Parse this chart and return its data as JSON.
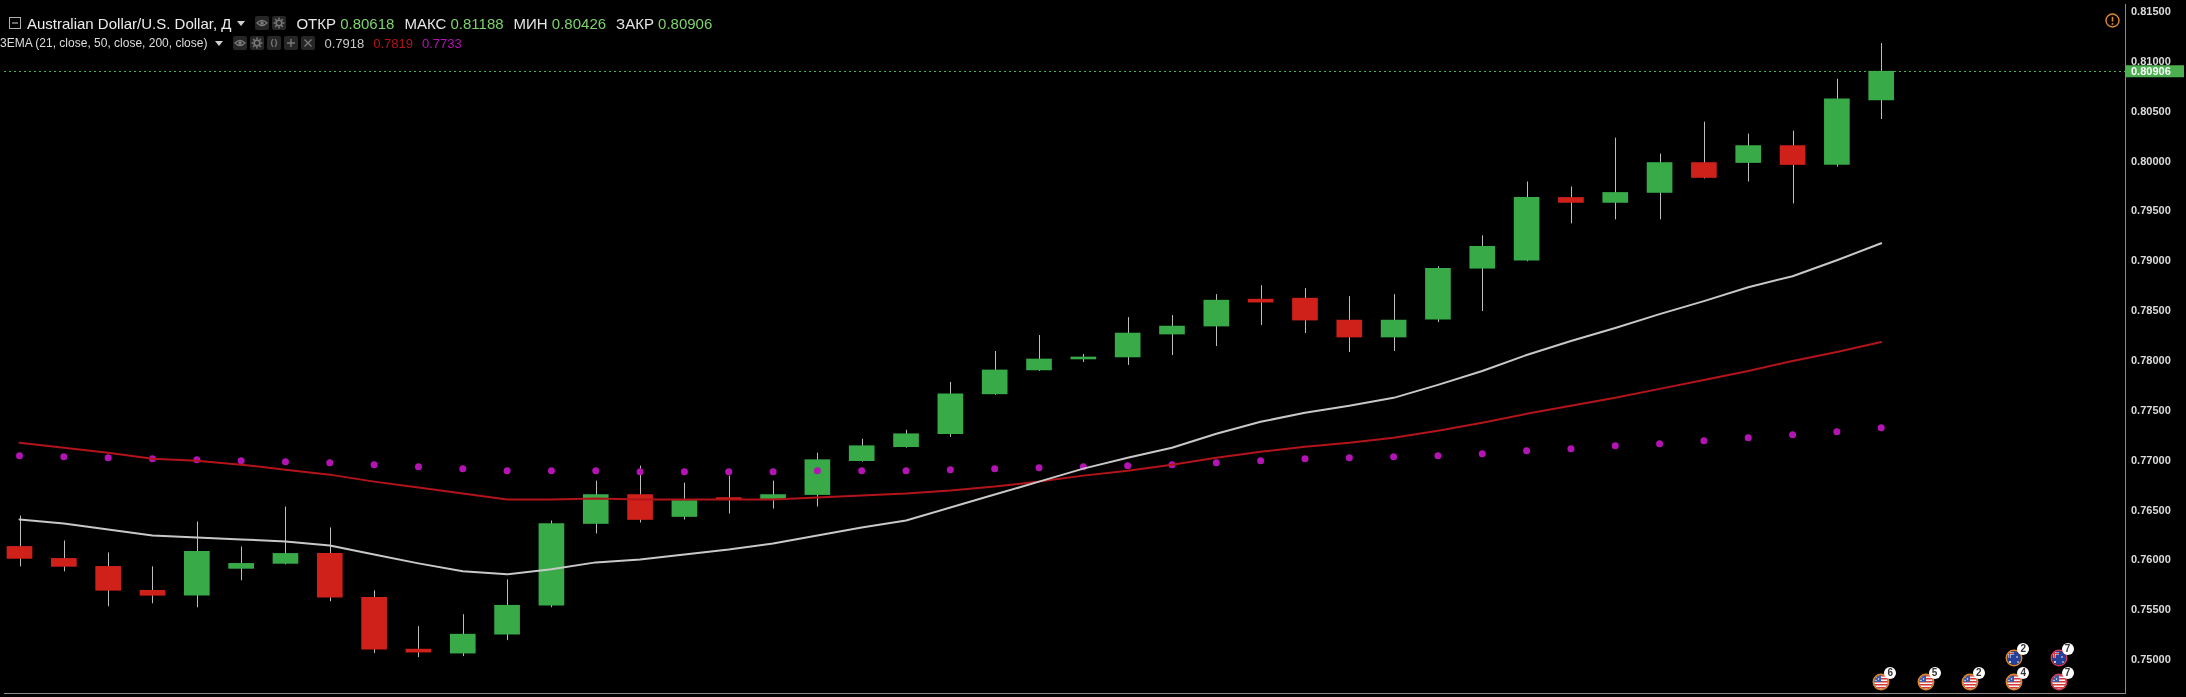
{
  "chart_data": {
    "type": "candlestick",
    "title": "Australian Dollar/U.S. Dollar, Д",
    "legend_title": "3EMA (21, close, 50, close, 200, close)",
    "annotations": [
      "ОТКР 0.80618",
      "МАКС 0.81188",
      "МИН 0.80426",
      "ЗАКР 0.80906",
      "2",
      "7",
      "6",
      "5",
      "2",
      "4",
      "7",
      "0.80906"
    ],
    "categories": [
      null,
      null,
      null,
      null,
      null,
      null,
      null,
      null,
      null,
      null,
      null,
      null,
      null,
      null,
      null,
      null,
      null,
      null,
      null,
      null,
      null,
      null,
      null,
      null,
      null,
      null,
      null,
      null,
      null,
      null,
      null,
      null,
      null,
      null,
      null,
      null,
      null,
      null,
      null,
      null,
      null,
      null,
      null
    ],
    "ohlc": [
      [
        0.7614,
        0.7645,
        0.7594,
        0.7602
      ],
      [
        0.7602,
        0.762,
        0.7589,
        0.7594
      ],
      [
        0.7594,
        0.7608,
        0.7554,
        0.757
      ],
      [
        0.757,
        0.7594,
        0.7557,
        0.7565
      ],
      [
        0.7565,
        0.7639,
        0.7553,
        0.7609
      ],
      [
        0.7592,
        0.7614,
        0.758,
        0.7597
      ],
      [
        0.7597,
        0.7654,
        0.7596,
        0.7607
      ],
      [
        0.7607,
        0.7633,
        0.7559,
        0.7563
      ],
      [
        0.7563,
        0.757,
        0.7507,
        0.7511
      ],
      [
        0.7511,
        0.7534,
        0.7503,
        0.7508
      ],
      [
        0.7507,
        0.7546,
        0.7504,
        0.7526
      ],
      [
        0.7526,
        0.7581,
        0.752,
        0.7555
      ],
      [
        0.7555,
        0.764,
        0.7553,
        0.7637
      ],
      [
        0.7637,
        0.768,
        0.7627,
        0.7666
      ],
      [
        0.7666,
        0.7695,
        0.7638,
        0.7641
      ],
      [
        0.7644,
        0.7678,
        0.7641,
        0.766
      ],
      [
        0.7662,
        0.7685,
        0.7647,
        0.7661
      ],
      [
        0.7662,
        0.768,
        0.7652,
        0.7666
      ],
      [
        0.7666,
        0.7708,
        0.7654,
        0.7701
      ],
      [
        0.77,
        0.7722,
        0.7699,
        0.7715
      ],
      [
        0.7714,
        0.7731,
        0.7713,
        0.7727
      ],
      [
        0.7727,
        0.7779,
        0.7724,
        0.7767
      ],
      [
        0.7767,
        0.781,
        0.7766,
        0.7791
      ],
      [
        0.7791,
        0.7826,
        0.779,
        0.7802
      ],
      [
        0.7802,
        0.7807,
        0.7799,
        0.7804
      ],
      [
        0.7804,
        0.7844,
        0.7796,
        0.7828
      ],
      [
        0.7827,
        0.7846,
        0.7806,
        0.7835
      ],
      [
        0.7835,
        0.7867,
        0.7815,
        0.7861
      ],
      [
        0.7862,
        0.7876,
        0.7836,
        0.7859
      ],
      [
        0.7863,
        0.7873,
        0.7828,
        0.7841
      ],
      [
        0.7841,
        0.7865,
        0.7809,
        0.7824
      ],
      [
        0.7824,
        0.7867,
        0.781,
        0.7841
      ],
      [
        0.7842,
        0.7895,
        0.7839,
        0.7893
      ],
      [
        0.7893,
        0.7926,
        0.785,
        0.7915
      ],
      [
        0.7901,
        0.798,
        0.79,
        0.7964
      ],
      [
        0.7964,
        0.7975,
        0.7938,
        0.7959
      ],
      [
        0.7959,
        0.8024,
        0.7942,
        0.7969
      ],
      [
        0.7969,
        0.8008,
        0.7942,
        0.7999
      ],
      [
        0.7999,
        0.804,
        0.7983,
        0.7984
      ],
      [
        0.7999,
        0.8028,
        0.798,
        0.8016
      ],
      [
        0.8016,
        0.8031,
        0.7958,
        0.7997
      ],
      [
        0.7997,
        0.8083,
        0.7995,
        0.8063
      ],
      [
        0.80618,
        0.81188,
        0.80426,
        0.80906
      ]
    ],
    "colors": [
      "#cf201a",
      "#cf201a",
      "#cf201a",
      "#cf201a",
      "#39aa48",
      "#39aa48",
      "#39aa48",
      "#cf201a",
      "#cf201a",
      "#cf201a",
      "#39aa48",
      "#39aa48",
      "#39aa48",
      "#39aa48",
      "#cf201a",
      "#39aa48",
      "#cf201a",
      "#39aa48",
      "#39aa48",
      "#39aa48",
      "#39aa48",
      "#39aa48",
      "#39aa48",
      "#39aa48",
      "#39aa48",
      "#39aa48",
      "#39aa48",
      "#39aa48",
      "#cf201a",
      "#cf201a",
      "#cf201a",
      "#39aa48",
      "#39aa48",
      "#39aa48",
      "#39aa48",
      "#cf201a",
      "#39aa48",
      "#39aa48",
      "#cf201a",
      "#39aa48",
      "#cf201a",
      "#39aa48",
      "#39aa48"
    ],
    "series": [
      {
        "name": "0.7918",
        "type": "line",
        "color": "#c8c8c8",
        "values": [
          0.7641,
          0.7637,
          0.7631,
          0.7625,
          0.7623,
          0.7621,
          0.7619,
          0.7615,
          0.7606,
          0.7597,
          0.7589,
          0.7586,
          0.7591,
          0.7598,
          0.7601,
          0.7606,
          0.7611,
          0.7617,
          0.7625,
          0.7633,
          0.764,
          0.7653,
          0.7666,
          0.7679,
          0.7692,
          0.7703,
          0.7713,
          0.7727,
          0.7739,
          0.7748,
          0.7755,
          0.7763,
          0.7776,
          0.779,
          0.7806,
          0.782,
          0.7833,
          0.7847,
          0.786,
          0.7874,
          0.7885,
          0.7901,
          0.7918
        ]
      },
      {
        "name": "0.7819",
        "type": "line",
        "color": "#b3141a",
        "values": [
          0.7718,
          0.7713,
          0.7708,
          0.7702,
          0.77,
          0.7696,
          0.7691,
          0.7686,
          0.7679,
          0.7673,
          0.7667,
          0.7661,
          0.7661,
          0.7662,
          0.7661,
          0.7661,
          0.7661,
          0.7661,
          0.7663,
          0.7665,
          0.7667,
          0.767,
          0.7674,
          0.7679,
          0.7685,
          0.769,
          0.7696,
          0.7703,
          0.7709,
          0.7714,
          0.7718,
          0.7723,
          0.773,
          0.7738,
          0.7747,
          0.7755,
          0.7763,
          0.7772,
          0.7781,
          0.779,
          0.78,
          0.7809,
          0.7819
        ]
      },
      {
        "name": "0.7733",
        "type": "scatter",
        "marker": "circle",
        "color": "#b414b4",
        "values": [
          0.7705,
          0.7704,
          0.7703,
          0.7702,
          0.7701,
          0.77,
          0.7699,
          0.7698,
          0.7696,
          0.7694,
          0.7692,
          0.769,
          0.769,
          0.769,
          0.7689,
          0.7689,
          0.7689,
          0.7689,
          0.769,
          0.769,
          0.769,
          0.7691,
          0.7692,
          0.7693,
          0.7694,
          0.7695,
          0.7696,
          0.7698,
          0.77,
          0.7702,
          0.7703,
          0.7704,
          0.7705,
          0.7707,
          0.771,
          0.7712,
          0.7715,
          0.7717,
          0.772,
          0.7723,
          0.7726,
          0.7729,
          0.7733
        ]
      }
    ],
    "ylim": [
      0.7467,
      0.8158
    ],
    "yticks": [
      {
        "value": 0.75,
        "label": "0.75000"
      },
      {
        "value": 0.755,
        "label": "0.75500"
      },
      {
        "value": 0.76,
        "label": "0.76000"
      },
      {
        "value": 0.765,
        "label": "0.76500"
      },
      {
        "value": 0.77,
        "label": "0.77000"
      },
      {
        "value": 0.775,
        "label": "0.77500"
      },
      {
        "value": 0.78,
        "label": "0.78000"
      },
      {
        "value": 0.785,
        "label": "0.78500"
      },
      {
        "value": 0.79,
        "label": "0.79000"
      },
      {
        "value": 0.795,
        "label": "0.79500"
      },
      {
        "value": 0.8,
        "label": "0.80000"
      },
      {
        "value": 0.805,
        "label": "0.80500"
      },
      {
        "value": 0.81,
        "label": "0.81000"
      },
      {
        "value": 0.815,
        "label": "0.81500"
      }
    ],
    "ref_lines": [
      {
        "axis": "y",
        "value": 0.80906,
        "color": "#4caf50",
        "line_style": "dotted"
      }
    ],
    "legend": "top left",
    "tick_labels": "y"
  }
}
